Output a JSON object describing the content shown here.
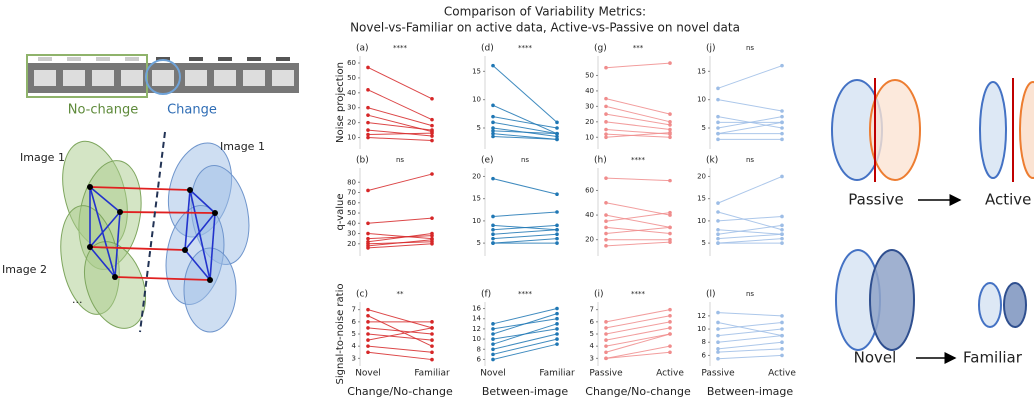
{
  "figure_title": [
    "Comparison of Variability Metrics:",
    "Novel-vs-Familiar on active data, Active-vs-Passive on novel data"
  ],
  "left_diagram": {
    "strip_labels": [
      "No-change",
      "Change"
    ],
    "image_labels": [
      "Image 1",
      "Image 1",
      "Image 2",
      "..."
    ]
  },
  "right_diagram": {
    "transitions": [
      {
        "from": "Passive",
        "to": "Active"
      },
      {
        "from": "Novel",
        "to": "Familiar"
      }
    ]
  },
  "chart_data": [
    {
      "type": "slope",
      "label": "(a)",
      "annotation": "****",
      "ylabel": "Noise projection",
      "color": "#d62728",
      "ylim": [
        5,
        62
      ],
      "yticks": [
        10,
        20,
        30,
        40,
        50,
        60
      ],
      "series": [
        {
          "values": [
            57,
            36
          ]
        },
        {
          "values": [
            42,
            22
          ]
        },
        {
          "values": [
            30,
            18
          ]
        },
        {
          "values": [
            25,
            14
          ]
        },
        {
          "values": [
            20,
            15
          ]
        },
        {
          "values": [
            15,
            11
          ]
        },
        {
          "values": [
            12,
            13
          ]
        },
        {
          "values": [
            10,
            8
          ]
        }
      ]
    },
    {
      "type": "slope",
      "label": "(d)",
      "annotation": "****",
      "color": "#1f77b4",
      "ylim": [
        2,
        17
      ],
      "yticks": [
        5,
        10,
        15
      ],
      "series": [
        {
          "values": [
            16,
            6
          ]
        },
        {
          "values": [
            9,
            4
          ]
        },
        {
          "values": [
            7,
            5
          ]
        },
        {
          "values": [
            6,
            4
          ]
        },
        {
          "values": [
            5,
            3.5
          ]
        },
        {
          "values": [
            4.5,
            4
          ]
        },
        {
          "values": [
            4,
            3
          ]
        },
        {
          "values": [
            3.5,
            3
          ]
        }
      ]
    },
    {
      "type": "slope",
      "label": "(g)",
      "annotation": "***",
      "color": "#f08c8c",
      "ylim": [
        5,
        60
      ],
      "yticks": [
        10,
        20,
        30,
        40,
        50
      ],
      "series": [
        {
          "values": [
            55,
            58
          ]
        },
        {
          "values": [
            35,
            25
          ]
        },
        {
          "values": [
            30,
            20
          ]
        },
        {
          "values": [
            25,
            18
          ]
        },
        {
          "values": [
            20,
            15
          ]
        },
        {
          "values": [
            15,
            12
          ]
        },
        {
          "values": [
            12,
            10
          ]
        },
        {
          "values": [
            10,
            13
          ]
        }
      ]
    },
    {
      "type": "slope",
      "label": "(j)",
      "annotation": "ns",
      "color": "#9dbde6",
      "ylim": [
        2,
        17
      ],
      "yticks": [
        5,
        10,
        15
      ],
      "series": [
        {
          "values": [
            12,
            16
          ]
        },
        {
          "values": [
            10,
            8
          ]
        },
        {
          "values": [
            7,
            5
          ]
        },
        {
          "values": [
            6,
            6
          ]
        },
        {
          "values": [
            5,
            7
          ]
        },
        {
          "values": [
            4,
            4
          ]
        },
        {
          "values": [
            4,
            6
          ]
        },
        {
          "values": [
            3,
            3
          ]
        }
      ]
    },
    {
      "type": "slope",
      "label": "(b)",
      "annotation": "ns",
      "ylabel": "q-value",
      "color": "#d62728",
      "ylim": [
        12,
        90
      ],
      "yticks": [
        20,
        30,
        40,
        50,
        60,
        70,
        80
      ],
      "series": [
        {
          "values": [
            72,
            88
          ]
        },
        {
          "values": [
            40,
            45
          ]
        },
        {
          "values": [
            30,
            25
          ]
        },
        {
          "values": [
            25,
            28
          ]
        },
        {
          "values": [
            22,
            30
          ]
        },
        {
          "values": [
            20,
            22
          ]
        },
        {
          "values": [
            18,
            24
          ]
        },
        {
          "values": [
            16,
            20
          ]
        }
      ]
    },
    {
      "type": "slope",
      "label": "(e)",
      "annotation": "ns",
      "color": "#1f77b4",
      "ylim": [
        3,
        21
      ],
      "yticks": [
        5,
        10,
        15,
        20
      ],
      "series": [
        {
          "values": [
            19.5,
            16
          ]
        },
        {
          "values": [
            11,
            12
          ]
        },
        {
          "values": [
            9,
            8
          ]
        },
        {
          "values": [
            8,
            9
          ]
        },
        {
          "values": [
            7,
            8
          ]
        },
        {
          "values": [
            6,
            7
          ]
        },
        {
          "values": [
            5,
            6
          ]
        },
        {
          "values": [
            5,
            5
          ]
        }
      ]
    },
    {
      "type": "slope",
      "label": "(h)",
      "annotation": "****",
      "color": "#f08c8c",
      "ylim": [
        10,
        75
      ],
      "yticks": [
        20,
        40,
        60
      ],
      "series": [
        {
          "values": [
            70,
            68
          ]
        },
        {
          "values": [
            50,
            40
          ]
        },
        {
          "values": [
            40,
            30
          ]
        },
        {
          "values": [
            35,
            42
          ]
        },
        {
          "values": [
            30,
            25
          ]
        },
        {
          "values": [
            25,
            30
          ]
        },
        {
          "values": [
            20,
            20
          ]
        },
        {
          "values": [
            15,
            18
          ]
        }
      ]
    },
    {
      "type": "slope",
      "label": "(k)",
      "annotation": "ns",
      "color": "#9dbde6",
      "ylim": [
        3,
        21
      ],
      "yticks": [
        5,
        10,
        15,
        20
      ],
      "series": [
        {
          "values": [
            14,
            20
          ]
        },
        {
          "values": [
            12,
            8
          ]
        },
        {
          "values": [
            10,
            11
          ]
        },
        {
          "values": [
            8,
            7
          ]
        },
        {
          "values": [
            7,
            9
          ]
        },
        {
          "values": [
            6,
            7
          ]
        },
        {
          "values": [
            5,
            6
          ]
        },
        {
          "values": [
            5,
            5
          ]
        }
      ]
    },
    {
      "type": "slope",
      "label": "(c)",
      "annotation": "**",
      "ylabel": "Signal-to-noise ratio",
      "xlabel": "Change/No-change",
      "categories": [
        "Novel",
        "Familiar"
      ],
      "color": "#d62728",
      "ylim": [
        2.7,
        7.3
      ],
      "yticks": [
        3,
        4,
        5,
        6,
        7
      ],
      "series": [
        {
          "values": [
            7,
            5.5
          ]
        },
        {
          "values": [
            6.5,
            4
          ]
        },
        {
          "values": [
            6,
            6
          ]
        },
        {
          "values": [
            5.5,
            5
          ]
        },
        {
          "values": [
            5,
            4.5
          ]
        },
        {
          "values": [
            4.5,
            5.5
          ]
        },
        {
          "values": [
            4,
            3.5
          ]
        },
        {
          "values": [
            3.5,
            2.9
          ]
        }
      ]
    },
    {
      "type": "slope",
      "label": "(f)",
      "annotation": "****",
      "xlabel": "Between-image",
      "categories": [
        "Novel",
        "Familiar"
      ],
      "color": "#1f77b4",
      "ylim": [
        5.5,
        16.5
      ],
      "yticks": [
        6,
        8,
        10,
        12,
        14,
        16
      ],
      "series": [
        {
          "values": [
            13,
            16
          ]
        },
        {
          "values": [
            12,
            14
          ]
        },
        {
          "values": [
            11,
            15
          ]
        },
        {
          "values": [
            10,
            12
          ]
        },
        {
          "values": [
            9,
            13
          ]
        },
        {
          "values": [
            8,
            11
          ]
        },
        {
          "values": [
            7,
            10
          ]
        },
        {
          "values": [
            6,
            9
          ]
        }
      ]
    },
    {
      "type": "slope",
      "label": "(i)",
      "annotation": "****",
      "xlabel": "Change/No-change",
      "categories": [
        "Passive",
        "Active"
      ],
      "color": "#f08c8c",
      "ylim": [
        2.7,
        7.3
      ],
      "yticks": [
        3,
        4,
        5,
        6,
        7
      ],
      "series": [
        {
          "values": [
            6,
            7
          ]
        },
        {
          "values": [
            5.5,
            6.5
          ]
        },
        {
          "values": [
            5,
            6
          ]
        },
        {
          "values": [
            4.5,
            5.5
          ]
        },
        {
          "values": [
            4,
            5
          ]
        },
        {
          "values": [
            3.5,
            5
          ]
        },
        {
          "values": [
            3,
            4
          ]
        },
        {
          "values": [
            3,
            3.5
          ]
        }
      ]
    },
    {
      "type": "slope",
      "label": "(l)",
      "annotation": "ns",
      "xlabel": "Between-image",
      "categories": [
        "Passive",
        "Active"
      ],
      "color": "#9dbde6",
      "ylim": [
        5,
        13.5
      ],
      "yticks": [
        6,
        8,
        10,
        12
      ],
      "series": [
        {
          "values": [
            12.5,
            12
          ]
        },
        {
          "values": [
            11,
            9
          ]
        },
        {
          "values": [
            10,
            11
          ]
        },
        {
          "values": [
            9,
            10
          ]
        },
        {
          "values": [
            8,
            9
          ]
        },
        {
          "values": [
            7,
            8
          ]
        },
        {
          "values": [
            6.5,
            7
          ]
        },
        {
          "values": [
            5.5,
            6
          ]
        }
      ]
    }
  ]
}
